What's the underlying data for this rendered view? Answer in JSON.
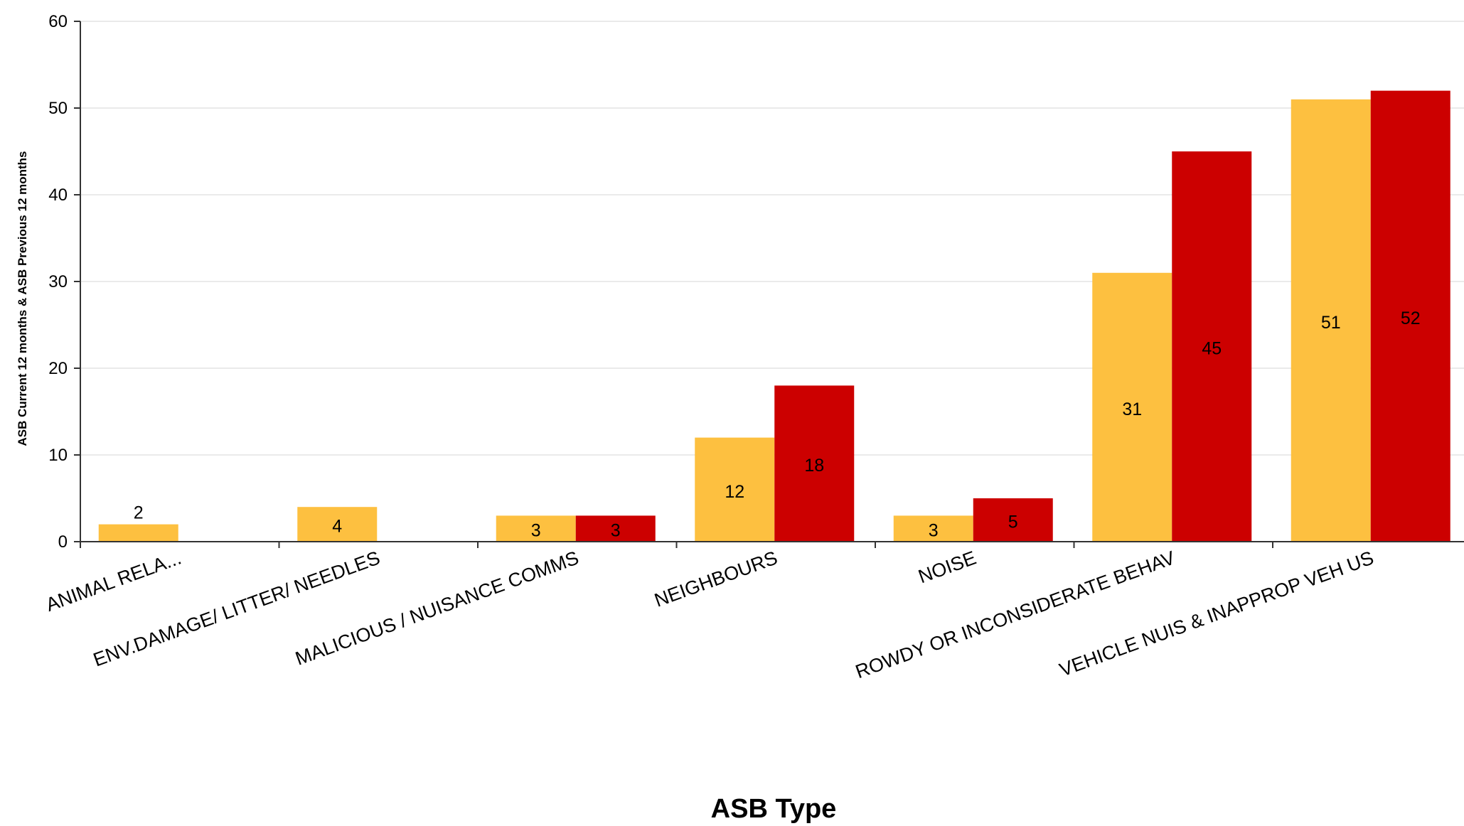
{
  "chart_data": {
    "type": "bar",
    "title": "",
    "xlabel": "ASB Type",
    "ylabel": "ASB Current 12 months & ASB Previous 12 months",
    "ylim": [
      0,
      60
    ],
    "yticks": [
      0,
      10,
      20,
      30,
      40,
      50,
      60
    ],
    "grid": true,
    "categories": [
      "ANIMAL RELA...",
      "ENV.DAMAGE/ LITTER/ NEEDLES",
      "MALICIOUS / NUISANCE COMMS",
      "NEIGHBOURS",
      "NOISE",
      "ROWDY OR INCONSIDERATE BEHAV",
      "VEHICLE NUIS & INAPPROP VEH US"
    ],
    "series": [
      {
        "values": [
          2,
          4,
          3,
          12,
          3,
          31,
          51
        ],
        "color": "#FDC040"
      },
      {
        "values": [
          null,
          null,
          3,
          18,
          5,
          45,
          52
        ],
        "color": "#CC0000"
      }
    ]
  }
}
